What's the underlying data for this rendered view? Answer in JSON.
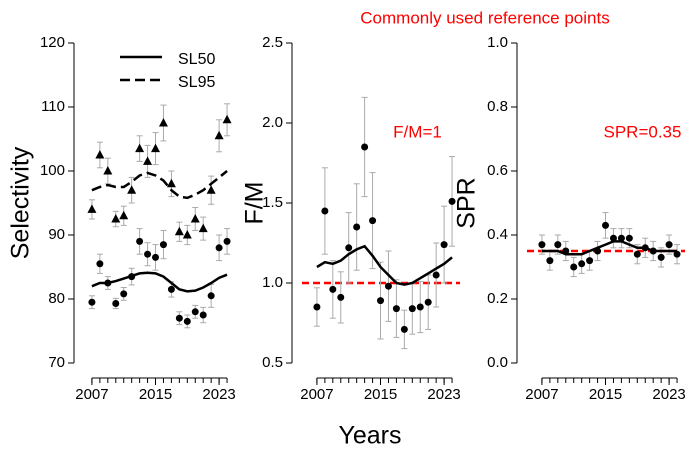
{
  "title": "Commonly used reference points",
  "xlabel": "Years",
  "chart_data": [
    {
      "type": "line",
      "ylabel": "Selectivity",
      "x": [
        2007,
        2008,
        2009,
        2010,
        2011,
        2012,
        2013,
        2014,
        2015,
        2016,
        2017,
        2018,
        2019,
        2020,
        2021,
        2022,
        2023,
        2024
      ],
      "xlim": [
        2005.5,
        2025
      ],
      "xticks": [
        2007,
        2015,
        2023
      ],
      "ylim": [
        70,
        120
      ],
      "yticks": [
        70,
        80,
        90,
        100,
        110,
        120
      ],
      "legend": "upper left",
      "series": [
        {
          "name": "SL50",
          "color": "#000000",
          "style": "solid",
          "values": [
            82,
            82.5,
            82.5,
            82.8,
            83.2,
            83.6,
            84,
            84.1,
            84,
            83.5,
            82.5,
            81.5,
            81.2,
            81.3,
            81.8,
            82.5,
            83.3,
            83.8
          ]
        },
        {
          "name": "SL95",
          "color": "#000000",
          "style": "dashed",
          "values": [
            97,
            97.5,
            97.8,
            97.5,
            97.5,
            98.3,
            99.3,
            99.7,
            99.3,
            98.5,
            97,
            96,
            95.8,
            96.3,
            97,
            98,
            99,
            100
          ]
        }
      ],
      "points": [
        {
          "marker": "circle",
          "color": "#000000",
          "values": [
            79.5,
            85.5,
            82.5,
            79.3,
            80.8,
            83.5,
            89,
            87,
            86.5,
            88.5,
            81.5,
            77,
            76.5,
            78,
            77.5,
            80.5,
            88,
            89
          ],
          "errors": [
            1,
            1.5,
            1,
            0.8,
            1,
            1.3,
            2,
            1.8,
            2,
            2.2,
            1.2,
            1,
            1,
            1,
            1.2,
            1.8,
            2,
            2
          ]
        },
        {
          "marker": "triangle",
          "color": "#000000",
          "values": [
            94,
            102.5,
            100,
            92.5,
            93,
            97,
            103.5,
            101.5,
            103.5,
            107.5,
            98,
            90.5,
            90,
            92.5,
            91,
            97,
            105.5,
            108
          ],
          "errors": [
            1.5,
            2,
            2,
            1.2,
            1.5,
            2,
            2,
            2.5,
            2.5,
            2.8,
            2,
            1.5,
            1.5,
            1.8,
            1.8,
            2.2,
            2.5,
            2.5
          ]
        }
      ]
    },
    {
      "type": "line",
      "ylabel": "F/M",
      "x": [
        2007,
        2008,
        2009,
        2010,
        2011,
        2012,
        2013,
        2014,
        2015,
        2016,
        2017,
        2018,
        2019,
        2020,
        2021,
        2022,
        2023,
        2024
      ],
      "xlim": [
        2005.5,
        2025
      ],
      "xticks": [
        2007,
        2015,
        2023
      ],
      "ylim": [
        0.5,
        2.5
      ],
      "yticks": [
        0.5,
        {
          "value": 1,
          "label": "1.0"
        },
        1.5,
        {
          "value": 2,
          "label": "2.0"
        },
        2.5
      ],
      "series": [
        {
          "color": "#000000",
          "style": "solid",
          "values": [
            1.1,
            1.13,
            1.12,
            1.14,
            1.18,
            1.21,
            1.23,
            1.17,
            1.1,
            1.05,
            1.0,
            0.99,
            1.0,
            1.03,
            1.06,
            1.09,
            1.12,
            1.16
          ]
        }
      ],
      "points": [
        {
          "marker": "circle",
          "color": "#000000",
          "values": [
            0.85,
            1.45,
            0.96,
            0.91,
            1.22,
            1.35,
            1.85,
            1.39,
            0.89,
            0.98,
            0.84,
            0.71,
            0.84,
            0.85,
            0.88,
            1.05,
            1.24,
            1.51
          ],
          "errors": [
            0.12,
            0.27,
            0.18,
            0.16,
            0.22,
            0.27,
            0.31,
            0.3,
            0.24,
            0.22,
            0.18,
            0.12,
            0.16,
            0.16,
            0.17,
            0.2,
            0.24,
            0.28
          ]
        }
      ],
      "reference": {
        "value": 1,
        "color": "#ff0000",
        "label": "F/M=1"
      }
    },
    {
      "type": "line",
      "ylabel": "SPR",
      "x": [
        2007,
        2008,
        2009,
        2010,
        2011,
        2012,
        2013,
        2014,
        2015,
        2016,
        2017,
        2018,
        2019,
        2020,
        2021,
        2022,
        2023,
        2024
      ],
      "xlim": [
        2005.5,
        2025
      ],
      "xticks": [
        2007,
        2015,
        2023
      ],
      "ylim": [
        0,
        1
      ],
      "yticks": [
        {
          "value": 0,
          "label": "0.0"
        },
        0.2,
        0.4,
        0.6,
        0.8,
        {
          "value": 1,
          "label": "1.0"
        }
      ],
      "series": [
        {
          "color": "#000000",
          "style": "solid",
          "values": [
            0.35,
            0.35,
            0.35,
            0.34,
            0.34,
            0.34,
            0.35,
            0.36,
            0.37,
            0.38,
            0.38,
            0.37,
            0.36,
            0.36,
            0.35,
            0.35,
            0.35,
            0.35
          ]
        }
      ],
      "points": [
        {
          "marker": "circle",
          "color": "#000000",
          "values": [
            0.37,
            0.32,
            0.37,
            0.35,
            0.3,
            0.31,
            0.32,
            0.35,
            0.43,
            0.39,
            0.39,
            0.39,
            0.34,
            0.36,
            0.35,
            0.33,
            0.37,
            0.34
          ],
          "errors": [
            0.03,
            0.03,
            0.03,
            0.03,
            0.03,
            0.03,
            0.03,
            0.03,
            0.04,
            0.03,
            0.03,
            0.03,
            0.03,
            0.03,
            0.03,
            0.03,
            0.03,
            0.03
          ]
        }
      ],
      "reference": {
        "value": 0.35,
        "color": "#ff0000",
        "label": "SPR=0.35"
      }
    }
  ]
}
